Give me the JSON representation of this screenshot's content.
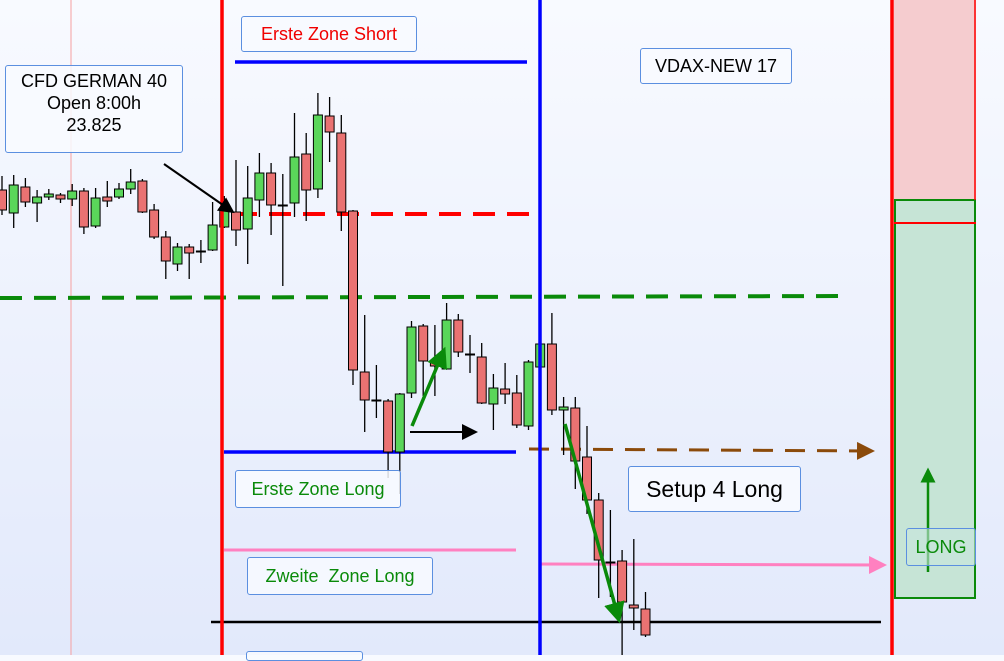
{
  "labels": {
    "erste_zone_short": "Erste Zone Short",
    "cfd_line1": "CFD GERMAN 40",
    "cfd_line2": "Open 8:00h",
    "cfd_line3": "23.825",
    "vdax": "VDAX-NEW 17",
    "erste_zone_long": "Erste Zone Long",
    "setup": "Setup 4 Long",
    "zweite_zone_long": "Zweite  Zone Long",
    "long": "LONG"
  },
  "colors": {
    "bull": "#5ad65a",
    "bear": "#ea7272",
    "short_zone": "#ff0000",
    "long_zone": "#0a8a0a",
    "vertical_blue": "#0000ff"
  },
  "chart_data": {
    "type": "candlestick",
    "title": "",
    "grid": false,
    "ohlc": [
      [
        23849,
        23863,
        23824,
        23829
      ],
      [
        23826,
        23864,
        23811,
        23854
      ],
      [
        23852,
        23861,
        23832,
        23837
      ],
      [
        23836,
        23849,
        23817,
        23842
      ],
      [
        23842,
        23850,
        23839,
        23845
      ],
      [
        23844,
        23846,
        23836,
        23840
      ],
      [
        23840,
        23855,
        23833,
        23848
      ],
      [
        23848,
        23851,
        23805,
        23812
      ],
      [
        23813,
        23851,
        23811,
        23841
      ],
      [
        23842,
        23858,
        23832,
        23838
      ],
      [
        23842,
        23856,
        23840,
        23850
      ],
      [
        23850,
        23870,
        23845,
        23857
      ],
      [
        23858,
        23860,
        23826,
        23827
      ],
      [
        23829,
        23835,
        23800,
        23802
      ],
      [
        23802,
        23808,
        23760,
        23778
      ],
      [
        23775,
        23796,
        23768,
        23792
      ],
      [
        23792,
        23795,
        23760,
        23786
      ],
      [
        23788,
        23799,
        23776,
        23788
      ],
      [
        23789,
        23837,
        23788,
        23814
      ],
      [
        23812,
        23843,
        23811,
        23829
      ],
      [
        23827,
        23879,
        23793,
        23809
      ],
      [
        23810,
        23873,
        23775,
        23841
      ],
      [
        23839,
        23886,
        23822,
        23866
      ],
      [
        23866,
        23876,
        23804,
        23834
      ],
      [
        23834,
        23865,
        23753,
        23834
      ],
      [
        23836,
        23926,
        23822,
        23882
      ],
      [
        23885,
        23906,
        23818,
        23849
      ],
      [
        23850,
        23946,
        23841,
        23924
      ],
      [
        23923,
        23942,
        23877,
        23907
      ],
      [
        23906,
        23924,
        23808,
        23827
      ],
      [
        23828,
        23829,
        23654,
        23669
      ],
      [
        23667,
        23724,
        23607,
        23639
      ],
      [
        23639,
        23674,
        23621,
        23639
      ],
      [
        23638,
        23640,
        23561,
        23587
      ],
      [
        23587,
        23646,
        23545,
        23645
      ],
      [
        23646,
        23718,
        23641,
        23712
      ],
      [
        23713,
        23715,
        23643,
        23678
      ],
      [
        23677,
        23714,
        23643,
        23673
      ],
      [
        23670,
        23736,
        23670,
        23719
      ],
      [
        23719,
        23725,
        23682,
        23687
      ],
      [
        23685,
        23704,
        23666,
        23684
      ],
      [
        23682,
        23696,
        23635,
        23636
      ],
      [
        23635,
        23665,
        23609,
        23651
      ],
      [
        23650,
        23676,
        23635,
        23645
      ],
      [
        23646,
        23664,
        23611,
        23614
      ],
      [
        23613,
        23679,
        23609,
        23677
      ],
      [
        23672,
        23696,
        23672,
        23695
      ],
      [
        23695,
        23726,
        23624,
        23629
      ],
      [
        23629,
        23642,
        23584,
        23632
      ],
      [
        23631,
        23642,
        23550,
        23578
      ],
      [
        23582,
        23613,
        23525,
        23539
      ],
      [
        23539,
        23546,
        23441,
        23479
      ],
      [
        23477,
        23529,
        23442,
        23477
      ],
      [
        23478,
        23489,
        23384,
        23437
      ],
      [
        23434,
        23500,
        23409,
        23431
      ],
      [
        23430,
        23447,
        23402,
        23404
      ]
    ],
    "levels": {
      "open": 23825
    }
  }
}
